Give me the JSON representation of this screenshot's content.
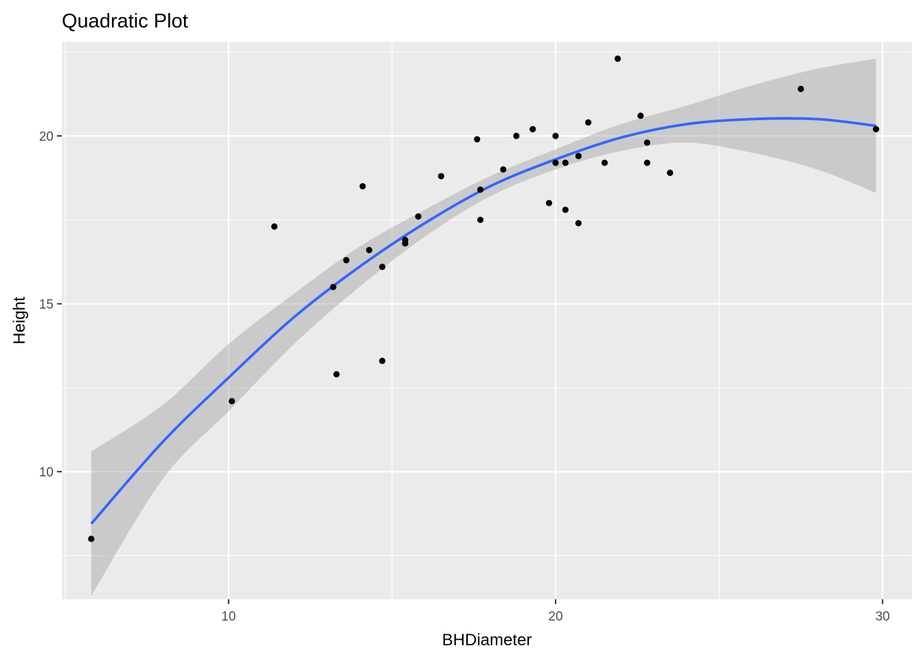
{
  "chart_data": {
    "type": "scatter",
    "title": "Quadratic Plot",
    "xlabel": "BHDiameter",
    "ylabel": "Height",
    "xlim": [
      4.9,
      30.9
    ],
    "ylim": [
      6.2,
      22.8
    ],
    "x_ticks": [
      10,
      20,
      30
    ],
    "y_ticks": [
      10,
      15,
      20
    ],
    "x_tick_labels": [
      "10",
      "20",
      "30"
    ],
    "y_tick_labels": [
      "10",
      "15",
      "20"
    ],
    "grid": true,
    "legend": "none",
    "points": [
      {
        "x": 5.8,
        "y": 8.0
      },
      {
        "x": 10.1,
        "y": 12.1
      },
      {
        "x": 11.4,
        "y": 17.3
      },
      {
        "x": 13.2,
        "y": 15.5
      },
      {
        "x": 13.3,
        "y": 12.9
      },
      {
        "x": 13.6,
        "y": 16.3
      },
      {
        "x": 14.1,
        "y": 18.5
      },
      {
        "x": 14.3,
        "y": 16.6
      },
      {
        "x": 14.7,
        "y": 16.1
      },
      {
        "x": 14.7,
        "y": 13.3
      },
      {
        "x": 15.4,
        "y": 16.8
      },
      {
        "x": 15.4,
        "y": 16.9
      },
      {
        "x": 15.8,
        "y": 17.6
      },
      {
        "x": 16.5,
        "y": 18.8
      },
      {
        "x": 17.6,
        "y": 19.9
      },
      {
        "x": 17.7,
        "y": 18.4
      },
      {
        "x": 17.7,
        "y": 17.5
      },
      {
        "x": 18.4,
        "y": 19.0
      },
      {
        "x": 18.8,
        "y": 20.0
      },
      {
        "x": 19.3,
        "y": 20.2
      },
      {
        "x": 19.8,
        "y": 18.0
      },
      {
        "x": 20.0,
        "y": 20.0
      },
      {
        "x": 20.0,
        "y": 19.2
      },
      {
        "x": 20.3,
        "y": 19.2
      },
      {
        "x": 20.3,
        "y": 17.8
      },
      {
        "x": 20.7,
        "y": 19.4
      },
      {
        "x": 20.7,
        "y": 17.4
      },
      {
        "x": 21.0,
        "y": 20.4
      },
      {
        "x": 21.5,
        "y": 19.2
      },
      {
        "x": 21.9,
        "y": 22.3
      },
      {
        "x": 22.6,
        "y": 20.6
      },
      {
        "x": 22.8,
        "y": 19.8
      },
      {
        "x": 22.8,
        "y": 19.2
      },
      {
        "x": 23.5,
        "y": 18.9
      },
      {
        "x": 27.5,
        "y": 21.4
      },
      {
        "x": 29.8,
        "y": 20.2
      }
    ],
    "fit": {
      "method": "quadratic",
      "x": [
        5.8,
        8,
        10,
        12,
        14,
        16,
        18,
        20,
        22,
        24,
        26,
        28,
        29.8
      ],
      "y": [
        8.45,
        10.9,
        12.8,
        14.6,
        16.1,
        17.4,
        18.5,
        19.3,
        19.95,
        20.35,
        20.5,
        20.5,
        20.3
      ],
      "upper": [
        10.6,
        12.0,
        13.8,
        15.3,
        16.7,
        17.8,
        18.8,
        19.6,
        20.35,
        20.9,
        21.5,
        22.0,
        22.3
      ],
      "lower": [
        6.3,
        9.8,
        11.8,
        13.8,
        15.5,
        17.0,
        18.2,
        19.0,
        19.55,
        19.8,
        19.5,
        19.0,
        18.3
      ],
      "colors": {
        "line": "#3366ff",
        "band": "#999999"
      }
    },
    "colors": {
      "panel": "#ebebeb",
      "grid": "#ffffff",
      "point": "#000000"
    }
  }
}
